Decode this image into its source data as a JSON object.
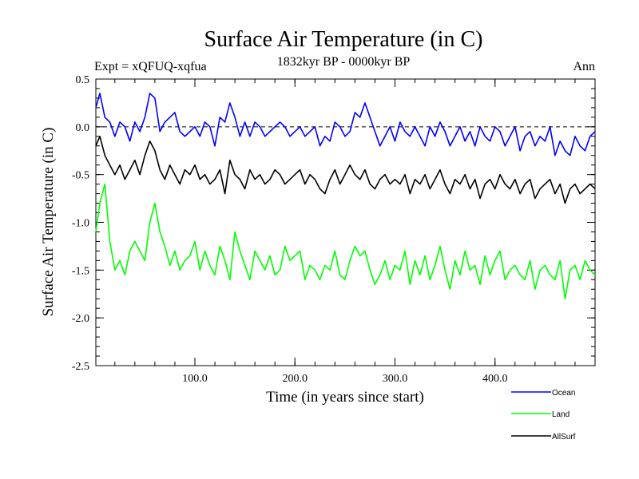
{
  "chart_data": {
    "type": "line",
    "title": "Surface Air Temperature (in C)",
    "subtitle_left": "Expt = xQFUQ-xqfua",
    "subtitle_center": "1832kyr BP - 0000kyr BP",
    "subtitle_right": "Ann",
    "xlabel": "Time (in years since start)",
    "ylabel": "Surface Air Temperature (in C)",
    "xlim": [
      1,
      500
    ],
    "ylim": [
      -2.5,
      0.5
    ],
    "xticks": [
      100,
      200,
      300,
      400
    ],
    "xtick_labels": [
      "100.0",
      "200.0",
      "300.0",
      "400.0"
    ],
    "yticks": [
      0.5,
      0.0,
      -0.5,
      -1.0,
      -1.5,
      -2.0,
      -2.5
    ],
    "ytick_labels": [
      "0.5",
      "0.0",
      "-0.5",
      "-1.0",
      "-1.5",
      "-2.0",
      "-2.5"
    ],
    "zero_line": true,
    "legend_position": "bottom-right",
    "series": [
      {
        "name": "Ocean",
        "color": "#0000ff",
        "x": [
          1,
          5,
          10,
          15,
          20,
          25,
          30,
          35,
          40,
          45,
          50,
          55,
          60,
          65,
          70,
          75,
          80,
          85,
          90,
          95,
          100,
          105,
          110,
          115,
          120,
          125,
          130,
          135,
          140,
          145,
          150,
          155,
          160,
          165,
          170,
          175,
          180,
          185,
          190,
          195,
          200,
          205,
          210,
          215,
          220,
          225,
          230,
          235,
          240,
          245,
          250,
          255,
          260,
          265,
          270,
          275,
          280,
          285,
          290,
          295,
          300,
          305,
          310,
          315,
          320,
          325,
          330,
          335,
          340,
          345,
          350,
          355,
          360,
          365,
          370,
          375,
          380,
          385,
          390,
          395,
          400,
          405,
          410,
          415,
          420,
          425,
          430,
          435,
          440,
          445,
          450,
          455,
          460,
          465,
          470,
          475,
          480,
          485,
          490,
          495,
          500
        ],
        "values": [
          0.2,
          0.35,
          0.1,
          0.05,
          -0.1,
          0.05,
          0.0,
          -0.15,
          0.05,
          -0.05,
          0.1,
          0.35,
          0.3,
          -0.05,
          0.05,
          0.1,
          0.15,
          -0.05,
          -0.1,
          -0.05,
          0.0,
          -0.1,
          0.05,
          0.0,
          -0.2,
          0.1,
          0.05,
          0.25,
          0.1,
          -0.1,
          0.05,
          -0.1,
          0.05,
          0.0,
          -0.1,
          -0.05,
          0.0,
          0.05,
          0.0,
          -0.1,
          -0.05,
          0.0,
          -0.1,
          -0.05,
          0.0,
          -0.2,
          -0.1,
          -0.15,
          0.05,
          0.0,
          -0.1,
          -0.05,
          0.15,
          0.1,
          0.25,
          0.1,
          -0.05,
          -0.2,
          -0.1,
          0.0,
          -0.15,
          0.05,
          -0.05,
          -0.1,
          0.0,
          -0.1,
          -0.2,
          0.0,
          -0.1,
          0.05,
          -0.05,
          -0.2,
          -0.1,
          0.0,
          -0.15,
          -0.05,
          -0.2,
          0.0,
          -0.1,
          -0.15,
          0.0,
          -0.05,
          -0.2,
          -0.1,
          0.0,
          -0.25,
          -0.1,
          -0.05,
          -0.2,
          -0.1,
          -0.15,
          0.0,
          -0.3,
          -0.15,
          -0.25,
          -0.3,
          -0.1,
          -0.2,
          -0.25,
          -0.1,
          -0.05
        ]
      },
      {
        "name": "Land",
        "color": "#00ff00",
        "x": [
          1,
          5,
          10,
          15,
          20,
          25,
          30,
          35,
          40,
          45,
          50,
          55,
          60,
          65,
          70,
          75,
          80,
          85,
          90,
          95,
          100,
          105,
          110,
          115,
          120,
          125,
          130,
          135,
          140,
          145,
          150,
          155,
          160,
          165,
          170,
          175,
          180,
          185,
          190,
          195,
          200,
          205,
          210,
          215,
          220,
          225,
          230,
          235,
          240,
          245,
          250,
          255,
          260,
          265,
          270,
          275,
          280,
          285,
          290,
          295,
          300,
          305,
          310,
          315,
          320,
          325,
          330,
          335,
          340,
          345,
          350,
          355,
          360,
          365,
          370,
          375,
          380,
          385,
          390,
          395,
          400,
          405,
          410,
          415,
          420,
          425,
          430,
          435,
          440,
          445,
          450,
          455,
          460,
          465,
          470,
          475,
          480,
          485,
          490,
          495,
          500
        ],
        "values": [
          -1.1,
          -0.8,
          -0.6,
          -1.2,
          -1.5,
          -1.4,
          -1.55,
          -1.3,
          -1.2,
          -1.3,
          -1.4,
          -1.0,
          -0.8,
          -1.1,
          -1.25,
          -1.45,
          -1.3,
          -1.5,
          -1.4,
          -1.35,
          -1.2,
          -1.5,
          -1.3,
          -1.45,
          -1.55,
          -1.25,
          -1.4,
          -1.6,
          -1.1,
          -1.3,
          -1.45,
          -1.6,
          -1.3,
          -1.4,
          -1.5,
          -1.35,
          -1.55,
          -1.5,
          -1.25,
          -1.4,
          -1.35,
          -1.3,
          -1.6,
          -1.45,
          -1.5,
          -1.6,
          -1.45,
          -1.5,
          -1.3,
          -1.55,
          -1.6,
          -1.4,
          -1.25,
          -1.35,
          -1.3,
          -1.5,
          -1.65,
          -1.55,
          -1.4,
          -1.6,
          -1.45,
          -1.5,
          -1.3,
          -1.65,
          -1.4,
          -1.55,
          -1.35,
          -1.6,
          -1.45,
          -1.25,
          -1.5,
          -1.7,
          -1.4,
          -1.55,
          -1.3,
          -1.5,
          -1.45,
          -1.65,
          -1.35,
          -1.55,
          -1.4,
          -1.3,
          -1.6,
          -1.5,
          -1.45,
          -1.55,
          -1.6,
          -1.4,
          -1.7,
          -1.5,
          -1.45,
          -1.55,
          -1.6,
          -1.4,
          -1.8,
          -1.5,
          -1.45,
          -1.6,
          -1.4,
          -1.5,
          -1.55
        ]
      },
      {
        "name": "AllSurf",
        "color": "#000000",
        "x": [
          1,
          5,
          10,
          15,
          20,
          25,
          30,
          35,
          40,
          45,
          50,
          55,
          60,
          65,
          70,
          75,
          80,
          85,
          90,
          95,
          100,
          105,
          110,
          115,
          120,
          125,
          130,
          135,
          140,
          145,
          150,
          155,
          160,
          165,
          170,
          175,
          180,
          185,
          190,
          195,
          200,
          205,
          210,
          215,
          220,
          225,
          230,
          235,
          240,
          245,
          250,
          255,
          260,
          265,
          270,
          275,
          280,
          285,
          290,
          295,
          300,
          305,
          310,
          315,
          320,
          325,
          330,
          335,
          340,
          345,
          350,
          355,
          360,
          365,
          370,
          375,
          380,
          385,
          390,
          395,
          400,
          405,
          410,
          415,
          420,
          425,
          430,
          435,
          440,
          445,
          450,
          455,
          460,
          465,
          470,
          475,
          480,
          485,
          490,
          495,
          500
        ],
        "values": [
          -0.2,
          -0.1,
          -0.3,
          -0.4,
          -0.5,
          -0.4,
          -0.55,
          -0.45,
          -0.35,
          -0.5,
          -0.3,
          -0.15,
          -0.25,
          -0.45,
          -0.55,
          -0.4,
          -0.5,
          -0.6,
          -0.45,
          -0.5,
          -0.4,
          -0.55,
          -0.5,
          -0.6,
          -0.55,
          -0.45,
          -0.7,
          -0.35,
          -0.5,
          -0.55,
          -0.65,
          -0.45,
          -0.55,
          -0.5,
          -0.6,
          -0.55,
          -0.45,
          -0.5,
          -0.6,
          -0.55,
          -0.5,
          -0.45,
          -0.6,
          -0.5,
          -0.55,
          -0.65,
          -0.7,
          -0.55,
          -0.45,
          -0.6,
          -0.5,
          -0.4,
          -0.5,
          -0.55,
          -0.45,
          -0.6,
          -0.65,
          -0.55,
          -0.5,
          -0.6,
          -0.55,
          -0.6,
          -0.5,
          -0.7,
          -0.55,
          -0.6,
          -0.5,
          -0.65,
          -0.55,
          -0.45,
          -0.6,
          -0.7,
          -0.55,
          -0.6,
          -0.5,
          -0.65,
          -0.55,
          -0.75,
          -0.6,
          -0.55,
          -0.65,
          -0.5,
          -0.6,
          -0.65,
          -0.55,
          -0.7,
          -0.6,
          -0.55,
          -0.75,
          -0.65,
          -0.6,
          -0.55,
          -0.7,
          -0.6,
          -0.8,
          -0.65,
          -0.6,
          -0.7,
          -0.65,
          -0.6,
          -0.65
        ]
      }
    ]
  }
}
